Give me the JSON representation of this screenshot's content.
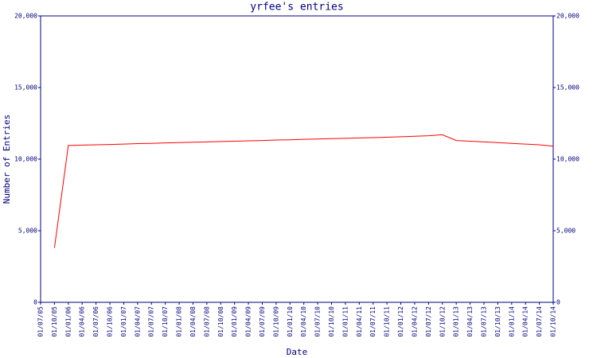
{
  "chart_data": {
    "type": "line",
    "title": "yrfee's entries",
    "x_label": "Date",
    "y_label": "Number of Entries",
    "categories": [
      "01/07/05",
      "01/10/05",
      "01/01/06",
      "01/04/06",
      "01/07/06",
      "01/10/06",
      "01/01/07",
      "01/04/07",
      "01/07/07",
      "01/10/07",
      "01/01/08",
      "01/04/08",
      "01/07/08",
      "01/10/08",
      "01/01/09",
      "01/04/09",
      "01/07/09",
      "01/10/09",
      "01/01/10",
      "01/04/10",
      "01/07/10",
      "01/10/10",
      "01/01/11",
      "01/04/11",
      "01/07/11",
      "01/10/11",
      "01/01/12",
      "01/04/12",
      "01/07/12",
      "01/10/12",
      "01/01/13",
      "01/04/13",
      "01/07/13",
      "01/10/13",
      "01/01/14",
      "01/04/14",
      "01/07/14",
      "01/10/14"
    ],
    "series": [
      {
        "name": "Entries",
        "color": "#ff0000",
        "values": [
          null,
          3800,
          10950,
          10980,
          11000,
          11020,
          11050,
          11080,
          11100,
          11130,
          11150,
          11180,
          11200,
          11230,
          11250,
          11280,
          11300,
          11330,
          11350,
          11380,
          11400,
          11430,
          11450,
          11480,
          11500,
          11530,
          11560,
          11600,
          11630,
          11700,
          11300,
          11250,
          11200,
          11150,
          11100,
          11050,
          11000,
          10900
        ]
      }
    ],
    "ylim": [
      0,
      20000
    ],
    "yticks": [
      0,
      {
        "value": 5000,
        "label": "5,000"
      },
      {
        "value": 10000,
        "label": "10,000"
      },
      {
        "value": 15000,
        "label": "15,000"
      },
      {
        "value": 20000,
        "label": "20,000"
      }
    ]
  }
}
